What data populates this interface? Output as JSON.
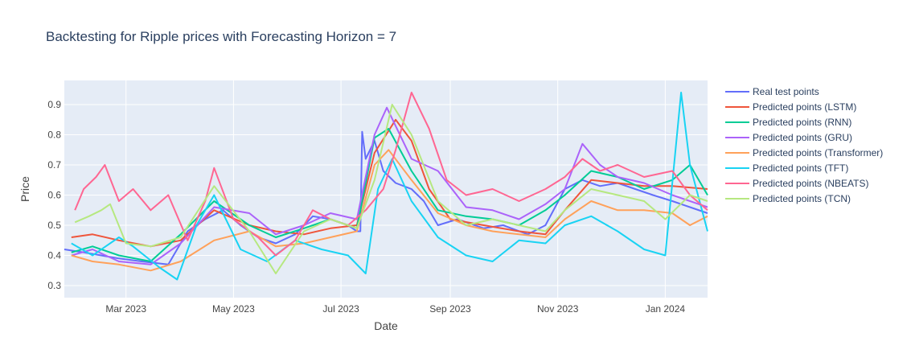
{
  "chart_data": {
    "type": "line",
    "title": "Backtesting for Ripple prices with Forecasting Horizon = 7",
    "xlabel": "Date",
    "ylabel": "Price",
    "x_range": [
      "2023-01-25",
      "2024-01-25"
    ],
    "ylim": [
      0.26,
      0.98
    ],
    "x_ticks": [
      {
        "date": "2023-03-01",
        "label": "Mar 2023"
      },
      {
        "date": "2023-05-01",
        "label": "May 2023"
      },
      {
        "date": "2023-07-01",
        "label": "Jul 2023"
      },
      {
        "date": "2023-09-01",
        "label": "Sep 2023"
      },
      {
        "date": "2023-11-01",
        "label": "Nov 2023"
      },
      {
        "date": "2024-01-01",
        "label": "Jan 2024"
      }
    ],
    "y_ticks": [
      {
        "value": 0.3,
        "label": "0.3"
      },
      {
        "value": 0.4,
        "label": "0.4"
      },
      {
        "value": 0.5,
        "label": "0.5"
      },
      {
        "value": 0.6,
        "label": "0.6"
      },
      {
        "value": 0.7,
        "label": "0.7"
      },
      {
        "value": 0.8,
        "label": "0.8"
      },
      {
        "value": 0.9,
        "label": "0.9"
      }
    ],
    "grid": true,
    "legend_position": "right",
    "colors": {
      "plot_bg": "#e5ecf6",
      "grid": "#ffffff"
    },
    "series": [
      {
        "name": "Real test points",
        "color": "#636efa",
        "x": [
          "2023-01-25",
          "2023-02-05",
          "2023-02-15",
          "2023-02-25",
          "2023-03-10",
          "2023-03-25",
          "2023-04-05",
          "2023-04-15",
          "2023-04-25",
          "2023-05-05",
          "2023-05-15",
          "2023-05-25",
          "2023-06-05",
          "2023-06-15",
          "2023-06-25",
          "2023-07-05",
          "2023-07-10",
          "2023-07-12",
          "2023-07-13",
          "2023-07-15",
          "2023-07-20",
          "2023-07-25",
          "2023-08-01",
          "2023-08-10",
          "2023-08-17",
          "2023-08-25",
          "2023-09-05",
          "2023-09-20",
          "2023-10-01",
          "2023-10-15",
          "2023-10-25",
          "2023-11-05",
          "2023-11-15",
          "2023-11-25",
          "2023-12-05",
          "2023-12-15",
          "2023-12-25",
          "2024-01-05",
          "2024-01-15",
          "2024-01-25"
        ],
        "values": [
          0.42,
          0.41,
          0.4,
          0.39,
          0.38,
          0.37,
          0.48,
          0.52,
          0.55,
          0.5,
          0.46,
          0.44,
          0.47,
          0.53,
          0.52,
          0.5,
          0.48,
          0.48,
          0.81,
          0.72,
          0.78,
          0.68,
          0.64,
          0.62,
          0.58,
          0.5,
          0.52,
          0.49,
          0.5,
          0.47,
          0.5,
          0.62,
          0.65,
          0.63,
          0.64,
          0.62,
          0.6,
          0.58,
          0.56,
          0.54
        ]
      },
      {
        "name": "Predicted points (LSTM)",
        "color": "#ef553b",
        "x": [
          "2023-01-29",
          "2023-02-10",
          "2023-02-25",
          "2023-03-15",
          "2023-04-01",
          "2023-04-20",
          "2023-05-10",
          "2023-05-25",
          "2023-06-10",
          "2023-06-25",
          "2023-07-10",
          "2023-07-20",
          "2023-08-01",
          "2023-08-10",
          "2023-08-20",
          "2023-09-01",
          "2023-09-20",
          "2023-10-10",
          "2023-10-25",
          "2023-11-05",
          "2023-11-20",
          "2023-12-05",
          "2023-12-20",
          "2024-01-05",
          "2024-01-25"
        ],
        "values": [
          0.46,
          0.47,
          0.45,
          0.43,
          0.45,
          0.55,
          0.5,
          0.48,
          0.47,
          0.49,
          0.5,
          0.74,
          0.85,
          0.78,
          0.62,
          0.52,
          0.5,
          0.48,
          0.47,
          0.55,
          0.65,
          0.64,
          0.63,
          0.63,
          0.62
        ]
      },
      {
        "name": "Predicted points (RNN)",
        "color": "#00cc96",
        "x": [
          "2023-01-29",
          "2023-02-10",
          "2023-02-25",
          "2023-03-15",
          "2023-04-01",
          "2023-04-20",
          "2023-05-10",
          "2023-05-25",
          "2023-06-10",
          "2023-06-25",
          "2023-07-10",
          "2023-07-20",
          "2023-07-28",
          "2023-08-10",
          "2023-08-25",
          "2023-09-10",
          "2023-09-25",
          "2023-10-10",
          "2023-10-25",
          "2023-11-05",
          "2023-11-20",
          "2023-12-05",
          "2023-12-20",
          "2024-01-05",
          "2024-01-15",
          "2024-01-25"
        ],
        "values": [
          0.41,
          0.43,
          0.4,
          0.38,
          0.47,
          0.58,
          0.5,
          0.46,
          0.49,
          0.52,
          0.49,
          0.79,
          0.82,
          0.68,
          0.55,
          0.53,
          0.52,
          0.5,
          0.55,
          0.6,
          0.68,
          0.66,
          0.62,
          0.65,
          0.7,
          0.6
        ]
      },
      {
        "name": "Predicted points (GRU)",
        "color": "#ab63fa",
        "x": [
          "2023-01-29",
          "2023-02-10",
          "2023-02-25",
          "2023-03-15",
          "2023-04-01",
          "2023-04-20",
          "2023-05-10",
          "2023-05-25",
          "2023-06-10",
          "2023-06-25",
          "2023-07-10",
          "2023-07-20",
          "2023-07-27",
          "2023-08-10",
          "2023-08-25",
          "2023-09-10",
          "2023-09-25",
          "2023-10-10",
          "2023-10-25",
          "2023-11-05",
          "2023-11-15",
          "2023-11-25",
          "2023-12-05",
          "2023-12-20",
          "2024-01-05",
          "2024-01-25"
        ],
        "values": [
          0.4,
          0.42,
          0.38,
          0.37,
          0.44,
          0.56,
          0.54,
          0.47,
          0.5,
          0.54,
          0.52,
          0.8,
          0.89,
          0.72,
          0.68,
          0.56,
          0.55,
          0.52,
          0.57,
          0.62,
          0.77,
          0.7,
          0.66,
          0.64,
          0.6,
          0.56
        ]
      },
      {
        "name": "Predicted points (Transformer)",
        "color": "#ffa15a",
        "x": [
          "2023-01-29",
          "2023-02-10",
          "2023-02-25",
          "2023-03-15",
          "2023-04-01",
          "2023-04-20",
          "2023-05-10",
          "2023-05-25",
          "2023-06-10",
          "2023-06-25",
          "2023-07-10",
          "2023-07-20",
          "2023-07-28",
          "2023-08-10",
          "2023-08-25",
          "2023-09-10",
          "2023-09-25",
          "2023-10-10",
          "2023-10-25",
          "2023-11-05",
          "2023-11-20",
          "2023-12-05",
          "2023-12-20",
          "2024-01-05",
          "2024-01-15",
          "2024-01-25"
        ],
        "values": [
          0.4,
          0.38,
          0.37,
          0.35,
          0.38,
          0.45,
          0.48,
          0.43,
          0.44,
          0.46,
          0.48,
          0.7,
          0.75,
          0.65,
          0.54,
          0.5,
          0.48,
          0.47,
          0.46,
          0.52,
          0.58,
          0.55,
          0.55,
          0.54,
          0.5,
          0.53
        ]
      },
      {
        "name": "Predicted points (TFT)",
        "color": "#19d3f3",
        "x": [
          "2023-01-29",
          "2023-02-10",
          "2023-02-25",
          "2023-03-05",
          "2023-03-20",
          "2023-03-30",
          "2023-04-10",
          "2023-04-20",
          "2023-05-05",
          "2023-05-20",
          "2023-06-05",
          "2023-06-20",
          "2023-07-05",
          "2023-07-15",
          "2023-07-22",
          "2023-07-30",
          "2023-08-10",
          "2023-08-25",
          "2023-09-10",
          "2023-09-25",
          "2023-10-10",
          "2023-10-25",
          "2023-11-05",
          "2023-11-20",
          "2023-12-05",
          "2023-12-20",
          "2024-01-01",
          "2024-01-10",
          "2024-01-15",
          "2024-01-25"
        ],
        "values": [
          0.44,
          0.4,
          0.46,
          0.43,
          0.36,
          0.32,
          0.5,
          0.6,
          0.42,
          0.38,
          0.45,
          0.42,
          0.4,
          0.34,
          0.62,
          0.72,
          0.58,
          0.46,
          0.4,
          0.38,
          0.45,
          0.44,
          0.5,
          0.53,
          0.48,
          0.42,
          0.4,
          0.94,
          0.7,
          0.48
        ]
      },
      {
        "name": "Predicted points (NBEATS)",
        "color": "#ff6692",
        "x": [
          "2023-01-31",
          "2023-02-05",
          "2023-02-12",
          "2023-02-17",
          "2023-02-25",
          "2023-03-05",
          "2023-03-15",
          "2023-03-25",
          "2023-04-05",
          "2023-04-15",
          "2023-04-20",
          "2023-05-01",
          "2023-05-15",
          "2023-05-25",
          "2023-06-05",
          "2023-06-15",
          "2023-06-25",
          "2023-07-05",
          "2023-07-15",
          "2023-07-25",
          "2023-08-01",
          "2023-08-10",
          "2023-08-20",
          "2023-08-30",
          "2023-09-10",
          "2023-09-25",
          "2023-10-10",
          "2023-10-25",
          "2023-11-05",
          "2023-11-15",
          "2023-11-25",
          "2023-12-05",
          "2023-12-20",
          "2024-01-05",
          "2024-01-15",
          "2024-01-25"
        ],
        "values": [
          0.55,
          0.62,
          0.66,
          0.7,
          0.58,
          0.62,
          0.55,
          0.6,
          0.45,
          0.58,
          0.69,
          0.52,
          0.46,
          0.4,
          0.45,
          0.55,
          0.52,
          0.5,
          0.55,
          0.62,
          0.75,
          0.94,
          0.82,
          0.65,
          0.6,
          0.62,
          0.58,
          0.62,
          0.66,
          0.72,
          0.68,
          0.7,
          0.66,
          0.68,
          0.6,
          0.55
        ]
      },
      {
        "name": "Predicted points (TCN)",
        "color": "#b6e880",
        "x": [
          "2023-01-31",
          "2023-02-08",
          "2023-02-15",
          "2023-02-20",
          "2023-03-01",
          "2023-03-15",
          "2023-04-01",
          "2023-04-20",
          "2023-05-10",
          "2023-05-25",
          "2023-06-10",
          "2023-06-25",
          "2023-07-10",
          "2023-07-20",
          "2023-07-30",
          "2023-08-10",
          "2023-08-25",
          "2023-09-10",
          "2023-09-25",
          "2023-10-10",
          "2023-10-25",
          "2023-11-05",
          "2023-11-20",
          "2023-12-05",
          "2023-12-20",
          "2024-01-01",
          "2024-01-15",
          "2024-01-25"
        ],
        "values": [
          0.51,
          0.53,
          0.55,
          0.57,
          0.44,
          0.43,
          0.46,
          0.63,
          0.48,
          0.34,
          0.48,
          0.52,
          0.49,
          0.65,
          0.9,
          0.8,
          0.58,
          0.5,
          0.52,
          0.5,
          0.48,
          0.55,
          0.62,
          0.6,
          0.58,
          0.52,
          0.6,
          0.58
        ]
      }
    ]
  }
}
